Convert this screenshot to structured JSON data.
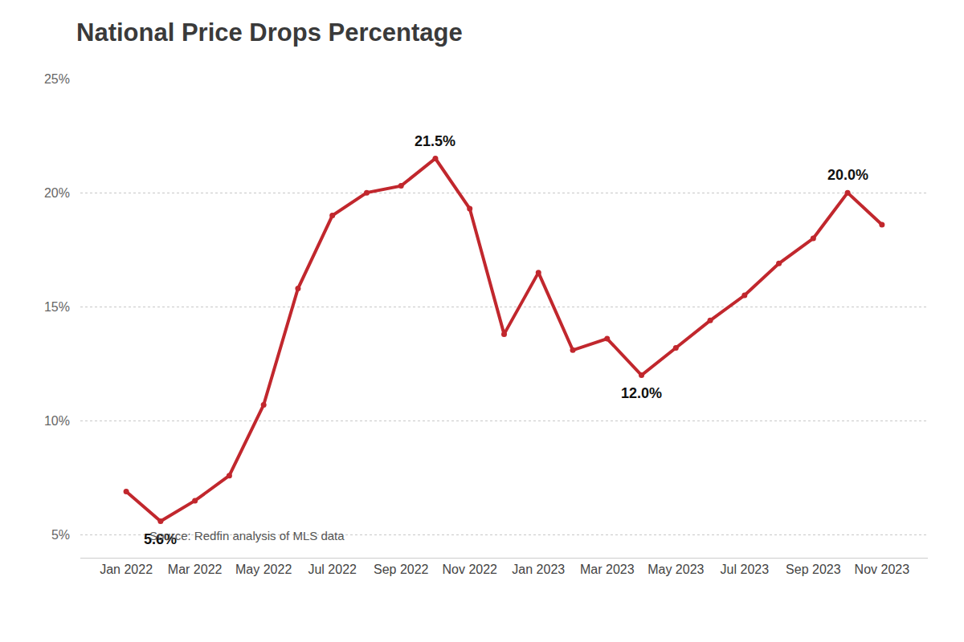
{
  "chart_data": {
    "type": "line",
    "title": "National Price Drops Percentage",
    "source": "Source: Redfin analysis of MLS data",
    "categories": [
      "Jan 2022",
      null,
      "Mar 2022",
      null,
      "May 2022",
      null,
      "Jul 2022",
      null,
      "Sep 2022",
      null,
      "Nov 2022",
      null,
      "Jan 2023",
      null,
      "Mar 2023",
      null,
      "May 2023",
      null,
      "Jul 2023",
      null,
      "Sep 2023",
      null,
      "Nov 2023"
    ],
    "values": [
      6.9,
      5.6,
      6.5,
      7.6,
      10.7,
      15.8,
      19.0,
      20.0,
      20.3,
      21.5,
      19.3,
      13.8,
      16.5,
      13.1,
      13.6,
      12.0,
      13.2,
      14.4,
      15.5,
      16.9,
      18.0,
      20.0,
      18.6
    ],
    "color": "#c1272d",
    "marker": "circle",
    "line_style": "solid",
    "ylim": [
      4,
      25
    ],
    "yticks": [
      {
        "value": 5,
        "label": "5%"
      },
      {
        "value": 10,
        "label": "10%"
      },
      {
        "value": 15,
        "label": "15%"
      },
      {
        "value": 20,
        "label": "20%"
      },
      {
        "value": 25,
        "label": "25%"
      }
    ],
    "grid": true,
    "annotations": [
      {
        "index": 1,
        "text": "5.6%",
        "position": "below"
      },
      {
        "index": 9,
        "text": "21.5%",
        "position": "above"
      },
      {
        "index": 15,
        "text": "12.0%",
        "position": "below"
      },
      {
        "index": 21,
        "text": "20.0%",
        "position": "above"
      }
    ]
  }
}
